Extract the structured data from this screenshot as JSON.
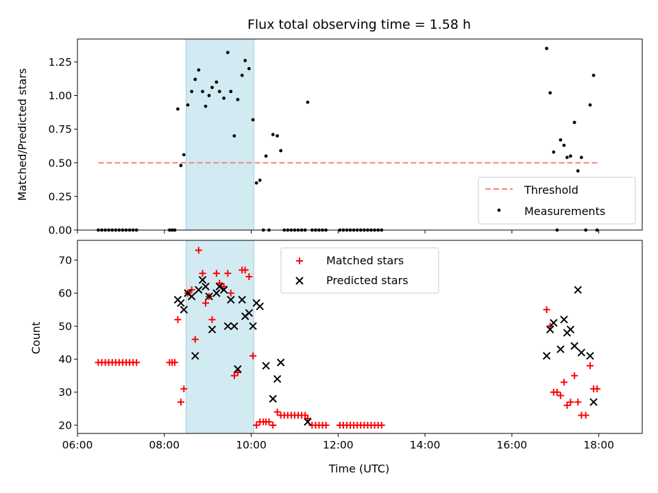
{
  "chart_data": [
    {
      "type": "scatter",
      "title": "Flux total observing time = 1.58 h",
      "ylabel": "Matched/Predicted stars",
      "xlabel": "",
      "x_unit": "hours UTC",
      "xlim": [
        6.0,
        19.0
      ],
      "ylim": [
        0.0,
        1.42
      ],
      "yticks": [
        "0.00",
        "0.25",
        "0.50",
        "0.75",
        "1.00",
        "1.25"
      ],
      "highlight_span": {
        "x0": 8.5,
        "x1": 10.06,
        "color": "#add8e6"
      },
      "legend": {
        "location": "lower right"
      },
      "series": [
        {
          "name": "Threshold",
          "style": "dashed-line",
          "color": "#ff7f7f",
          "points": [
            [
              6.48,
              0.5
            ],
            [
              17.97,
              0.5
            ]
          ]
        },
        {
          "name": "Measurements",
          "style": "dot",
          "color": "#000000",
          "points": [
            [
              6.48,
              0
            ],
            [
              6.56,
              0
            ],
            [
              6.64,
              0
            ],
            [
              6.72,
              0
            ],
            [
              6.8,
              0
            ],
            [
              6.88,
              0
            ],
            [
              6.96,
              0
            ],
            [
              7.04,
              0
            ],
            [
              7.12,
              0
            ],
            [
              7.2,
              0
            ],
            [
              7.28,
              0
            ],
            [
              7.36,
              0
            ],
            [
              8.12,
              0
            ],
            [
              8.18,
              0
            ],
            [
              8.24,
              0
            ],
            [
              8.31,
              0.9
            ],
            [
              8.38,
              0.48
            ],
            [
              8.45,
              0.56
            ],
            [
              8.54,
              0.93
            ],
            [
              8.63,
              1.03
            ],
            [
              8.71,
              1.12
            ],
            [
              8.79,
              1.19
            ],
            [
              8.88,
              1.03
            ],
            [
              8.95,
              0.92
            ],
            [
              9.03,
              1.0
            ],
            [
              9.1,
              1.06
            ],
            [
              9.2,
              1.1
            ],
            [
              9.27,
              1.03
            ],
            [
              9.37,
              0.98
            ],
            [
              9.46,
              1.32
            ],
            [
              9.53,
              1.03
            ],
            [
              9.61,
              0.7
            ],
            [
              9.69,
              0.97
            ],
            [
              9.79,
              1.15
            ],
            [
              9.86,
              1.26
            ],
            [
              9.95,
              1.2
            ],
            [
              10.04,
              0.82
            ],
            [
              10.12,
              0.35
            ],
            [
              10.2,
              0.37
            ],
            [
              10.28,
              0
            ],
            [
              10.34,
              0.55
            ],
            [
              10.41,
              0
            ],
            [
              10.5,
              0.71
            ],
            [
              10.6,
              0.7
            ],
            [
              10.68,
              0.59
            ],
            [
              10.76,
              0
            ],
            [
              10.84,
              0
            ],
            [
              10.92,
              0
            ],
            [
              11.0,
              0
            ],
            [
              11.08,
              0
            ],
            [
              11.16,
              0
            ],
            [
              11.24,
              0
            ],
            [
              11.3,
              0.95
            ],
            [
              11.4,
              0
            ],
            [
              11.48,
              0
            ],
            [
              11.56,
              0
            ],
            [
              11.64,
              0
            ],
            [
              11.72,
              0
            ],
            [
              12.04,
              0
            ],
            [
              12.12,
              0
            ],
            [
              12.2,
              0
            ],
            [
              12.28,
              0
            ],
            [
              12.36,
              0
            ],
            [
              12.44,
              0
            ],
            [
              12.52,
              0
            ],
            [
              12.6,
              0
            ],
            [
              12.68,
              0
            ],
            [
              12.76,
              0
            ],
            [
              12.84,
              0
            ],
            [
              12.92,
              0
            ],
            [
              13.0,
              0
            ],
            [
              16.8,
              1.35
            ],
            [
              16.88,
              1.02
            ],
            [
              16.96,
              0.58
            ],
            [
              17.04,
              0
            ],
            [
              17.12,
              0.67
            ],
            [
              17.2,
              0.63
            ],
            [
              17.27,
              0.54
            ],
            [
              17.35,
              0.55
            ],
            [
              17.44,
              0.8
            ],
            [
              17.52,
              0.44
            ],
            [
              17.6,
              0.54
            ],
            [
              17.7,
              0
            ],
            [
              17.8,
              0.93
            ],
            [
              17.88,
              1.15
            ],
            [
              17.96,
              0
            ]
          ]
        }
      ]
    },
    {
      "type": "scatter",
      "title": "",
      "xlabel": "Time (UTC)",
      "ylabel": "Count",
      "x_unit": "hours UTC",
      "xlim": [
        6.0,
        19.0
      ],
      "ylim": [
        17.5,
        76.0
      ],
      "xticks": [
        "06:00",
        "08:00",
        "10:00",
        "12:00",
        "14:00",
        "16:00",
        "18:00"
      ],
      "yticks": [
        "20",
        "30",
        "40",
        "50",
        "60",
        "70"
      ],
      "highlight_span": {
        "x0": 8.5,
        "x1": 10.06,
        "color": "#add8e6"
      },
      "legend": {
        "location": "upper center"
      },
      "series": [
        {
          "name": "Matched stars",
          "style": "plus",
          "color": "#ff0000",
          "points": [
            [
              6.48,
              39
            ],
            [
              6.56,
              39
            ],
            [
              6.64,
              39
            ],
            [
              6.72,
              39
            ],
            [
              6.8,
              39
            ],
            [
              6.88,
              39
            ],
            [
              6.96,
              39
            ],
            [
              7.04,
              39
            ],
            [
              7.12,
              39
            ],
            [
              7.2,
              39
            ],
            [
              7.28,
              39
            ],
            [
              7.36,
              39
            ],
            [
              8.12,
              39
            ],
            [
              8.18,
              39
            ],
            [
              8.24,
              39
            ],
            [
              8.31,
              52
            ],
            [
              8.38,
              27
            ],
            [
              8.45,
              31
            ],
            [
              8.54,
              60
            ],
            [
              8.63,
              61
            ],
            [
              8.71,
              46
            ],
            [
              8.79,
              73
            ],
            [
              8.88,
              66
            ],
            [
              8.95,
              57
            ],
            [
              9.03,
              59
            ],
            [
              9.1,
              52
            ],
            [
              9.2,
              66
            ],
            [
              9.27,
              63
            ],
            [
              9.37,
              62
            ],
            [
              9.46,
              66
            ],
            [
              9.53,
              60
            ],
            [
              9.61,
              35
            ],
            [
              9.69,
              36
            ],
            [
              9.79,
              67
            ],
            [
              9.86,
              67
            ],
            [
              9.95,
              65
            ],
            [
              10.04,
              41
            ],
            [
              10.12,
              20
            ],
            [
              10.2,
              21
            ],
            [
              10.28,
              21
            ],
            [
              10.34,
              21
            ],
            [
              10.41,
              21
            ],
            [
              10.5,
              20
            ],
            [
              10.6,
              24
            ],
            [
              10.68,
              23
            ],
            [
              10.76,
              23
            ],
            [
              10.84,
              23
            ],
            [
              10.92,
              23
            ],
            [
              11.0,
              23
            ],
            [
              11.08,
              23
            ],
            [
              11.16,
              23
            ],
            [
              11.24,
              23
            ],
            [
              11.3,
              22
            ],
            [
              11.4,
              20
            ],
            [
              11.48,
              20
            ],
            [
              11.56,
              20
            ],
            [
              11.64,
              20
            ],
            [
              11.72,
              20
            ],
            [
              12.04,
              20
            ],
            [
              12.12,
              20
            ],
            [
              12.2,
              20
            ],
            [
              12.28,
              20
            ],
            [
              12.36,
              20
            ],
            [
              12.44,
              20
            ],
            [
              12.52,
              20
            ],
            [
              12.6,
              20
            ],
            [
              12.68,
              20
            ],
            [
              12.76,
              20
            ],
            [
              12.84,
              20
            ],
            [
              12.92,
              20
            ],
            [
              13.0,
              20
            ],
            [
              16.8,
              55
            ],
            [
              16.88,
              50
            ],
            [
              16.96,
              30
            ],
            [
              17.04,
              30
            ],
            [
              17.12,
              29
            ],
            [
              17.2,
              33
            ],
            [
              17.27,
              26
            ],
            [
              17.35,
              27
            ],
            [
              17.44,
              35
            ],
            [
              17.52,
              27
            ],
            [
              17.6,
              23
            ],
            [
              17.7,
              23
            ],
            [
              17.8,
              38
            ],
            [
              17.88,
              31
            ],
            [
              17.96,
              31
            ]
          ]
        },
        {
          "name": "Predicted stars",
          "style": "x",
          "color": "#000000",
          "points": [
            [
              8.31,
              58
            ],
            [
              8.38,
              57
            ],
            [
              8.45,
              55
            ],
            [
              8.54,
              60
            ],
            [
              8.63,
              59
            ],
            [
              8.71,
              41
            ],
            [
              8.79,
              61
            ],
            [
              8.88,
              64
            ],
            [
              8.95,
              62
            ],
            [
              9.03,
              59
            ],
            [
              9.1,
              49
            ],
            [
              9.2,
              60
            ],
            [
              9.27,
              62
            ],
            [
              9.37,
              61
            ],
            [
              9.46,
              50
            ],
            [
              9.53,
              58
            ],
            [
              9.61,
              50
            ],
            [
              9.69,
              37
            ],
            [
              9.79,
              58
            ],
            [
              9.86,
              53
            ],
            [
              9.95,
              54
            ],
            [
              10.04,
              50
            ],
            [
              10.12,
              57
            ],
            [
              10.2,
              56
            ],
            [
              10.34,
              38
            ],
            [
              10.5,
              28
            ],
            [
              10.6,
              34
            ],
            [
              10.68,
              39
            ],
            [
              11.3,
              21
            ],
            [
              16.8,
              41
            ],
            [
              16.88,
              49
            ],
            [
              16.96,
              51
            ],
            [
              17.12,
              43
            ],
            [
              17.2,
              52
            ],
            [
              17.27,
              48
            ],
            [
              17.35,
              49
            ],
            [
              17.44,
              44
            ],
            [
              17.52,
              61
            ],
            [
              17.6,
              42
            ],
            [
              17.8,
              41
            ],
            [
              17.88,
              27
            ]
          ]
        }
      ]
    }
  ]
}
